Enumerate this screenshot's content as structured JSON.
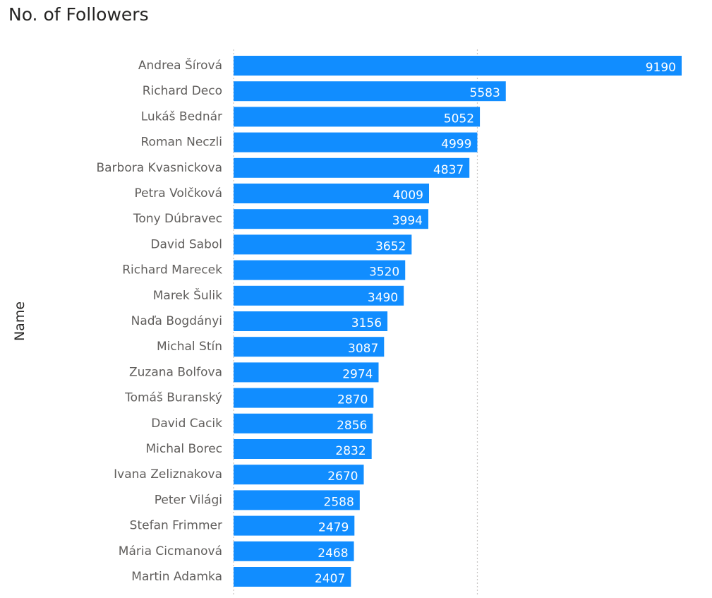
{
  "chart_data": {
    "type": "bar",
    "orientation": "horizontal",
    "title": "No. of Followers",
    "ylabel": "Name",
    "xlabel": "",
    "categories": [
      "Andrea Šírová",
      "Richard Deco",
      "Lukáš Bednár",
      "Roman Neczli",
      "Barbora Kvasnickova",
      "Petra Volčková",
      "Tony Dúbravec",
      "David Sabol",
      "Richard Marecek",
      "Marek Šulik",
      "Naďa Bogdányi",
      "Michal Stín",
      "Zuzana Bolfova",
      "Tomáš Buranský",
      "David Cacik",
      "Michal Borec",
      "Ivana Zeliznakova",
      "Peter Világi",
      "Stefan Frimmer",
      "Mária Cicmanová",
      "Martin Adamka"
    ],
    "values": [
      9190,
      5583,
      5052,
      4999,
      4837,
      4009,
      3994,
      3652,
      3520,
      3490,
      3156,
      3087,
      2974,
      2870,
      2856,
      2832,
      2670,
      2588,
      2479,
      2468,
      2407
    ],
    "xlim": [
      0,
      9190
    ],
    "gridlines_at": [
      0,
      5000
    ],
    "grid": true,
    "data_labels": true,
    "colors": {
      "bar": "#118DFF",
      "label_inside": "#FFFFFF",
      "category_text": "#605E5C",
      "title_text": "#252423",
      "grid": "#C8C6C4"
    }
  }
}
